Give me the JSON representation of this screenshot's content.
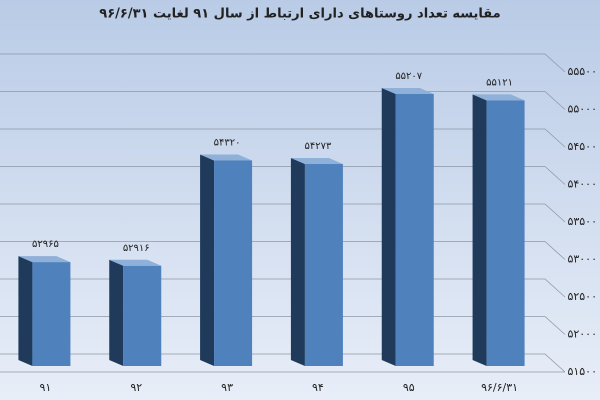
{
  "chart_data": {
    "type": "bar3d",
    "title": "مقایسه تعداد روستاهای دارای ارتباط از سال ۹۱ لغایت ۹۶/۶/۳۱",
    "categories": [
      "۹۱",
      "۹۲",
      "۹۳",
      "۹۴",
      "۹۵",
      "۹۶/۶/۳۱"
    ],
    "values": [
      52965,
      52916,
      54320,
      54273,
      55207,
      55121
    ],
    "value_labels": [
      "۵۲۹۶۵",
      "۵۲۹۱۶",
      "۵۴۳۲۰",
      "۵۴۲۷۳",
      "۵۵۲۰۷",
      "۵۵۱۲۱"
    ],
    "color": "#4f81bd",
    "ylim": [
      51500,
      55500
    ],
    "yticks": [
      {
        "value": 51500,
        "label": "۵۱۵۰۰"
      },
      {
        "value": 52000,
        "label": "۵۲۰۰۰"
      },
      {
        "value": 52500,
        "label": "۵۲۵۰۰"
      },
      {
        "value": 53000,
        "label": "۵۳۰۰۰"
      },
      {
        "value": 53500,
        "label": "۵۳۵۰۰"
      },
      {
        "value": 54000,
        "label": "۵۴۰۰۰"
      },
      {
        "value": 54500,
        "label": "۵۴۵۰۰"
      },
      {
        "value": 55000,
        "label": "۵۵۰۰۰"
      },
      {
        "value": 55500,
        "label": "۵۵۵۰۰"
      }
    ],
    "grid": true
  }
}
